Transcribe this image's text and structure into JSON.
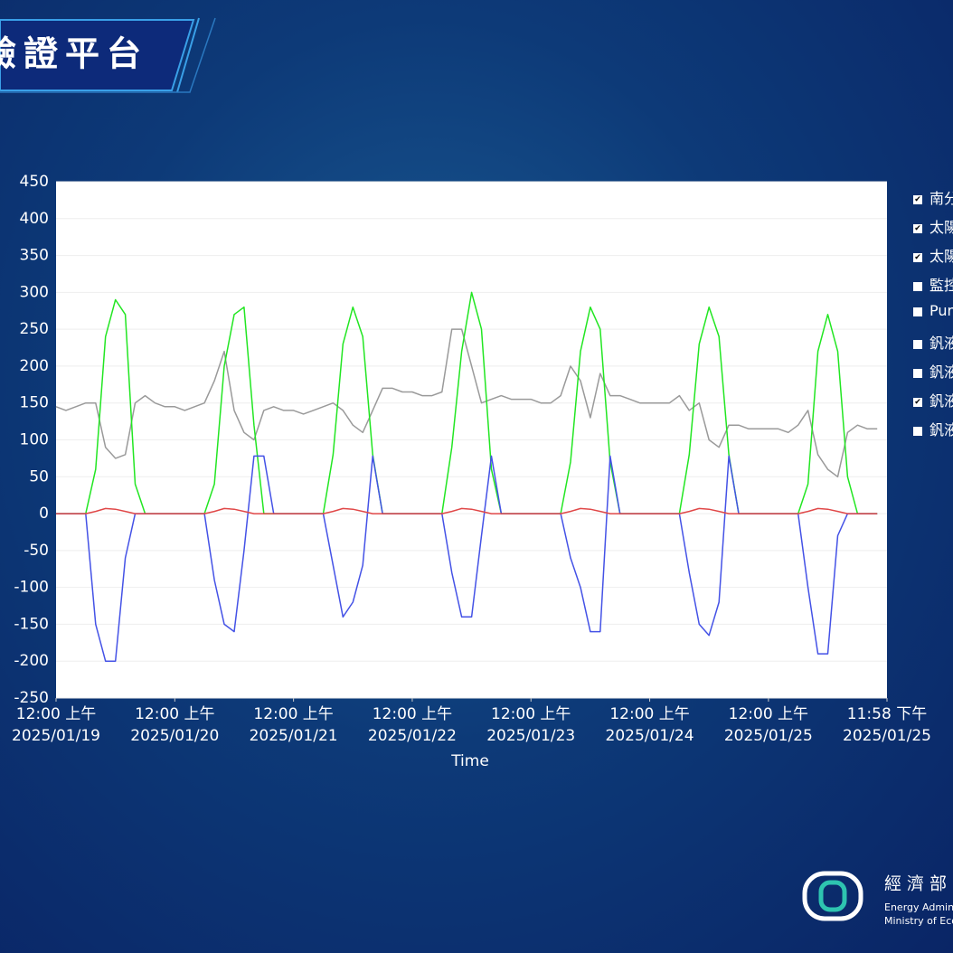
{
  "header": {
    "title": "驗證平台"
  },
  "footer": {
    "org": "經濟部",
    "en1": "Energy Admini",
    "en2": "Ministry of Eco"
  },
  "chart_data": {
    "type": "line",
    "xlabel": "Time",
    "xlim": [
      "2025-01-19T00:00",
      "2025-01-25T23:58"
    ],
    "xticks": [
      {
        "value": "2025-01-19T00:00",
        "label": "12:00 上午\n2025/01/19"
      },
      {
        "value": "2025-01-20T00:00",
        "label": "12:00 上午\n2025/01/20"
      },
      {
        "value": "2025-01-21T00:00",
        "label": "12:00 上午\n2025/01/21"
      },
      {
        "value": "2025-01-22T00:00",
        "label": "12:00 上午\n2025/01/22"
      },
      {
        "value": "2025-01-23T00:00",
        "label": "12:00 上午\n2025/01/23"
      },
      {
        "value": "2025-01-24T00:00",
        "label": "12:00 上午\n2025/01/24"
      },
      {
        "value": "2025-01-25T00:00",
        "label": "12:00 上午\n2025/01/25"
      },
      {
        "value": "2025-01-25T23:58",
        "label": "11:58 下午\n2025/01/25"
      }
    ],
    "ylim": [
      -250,
      450
    ],
    "yticks": [
      -250,
      -200,
      -150,
      -100,
      -50,
      0,
      50,
      100,
      150,
      200,
      250,
      300,
      350,
      400,
      450
    ],
    "grid": true,
    "x": [
      "2025-01-19T00:00",
      "2025-01-19T02:00",
      "2025-01-19T04:00",
      "2025-01-19T06:00",
      "2025-01-19T08:00",
      "2025-01-19T10:00",
      "2025-01-19T12:00",
      "2025-01-19T14:00",
      "2025-01-19T16:00",
      "2025-01-19T18:00",
      "2025-01-19T20:00",
      "2025-01-19T22:00",
      "2025-01-20T00:00",
      "2025-01-20T02:00",
      "2025-01-20T04:00",
      "2025-01-20T06:00",
      "2025-01-20T08:00",
      "2025-01-20T10:00",
      "2025-01-20T12:00",
      "2025-01-20T14:00",
      "2025-01-20T16:00",
      "2025-01-20T18:00",
      "2025-01-20T20:00",
      "2025-01-20T22:00",
      "2025-01-21T00:00",
      "2025-01-21T02:00",
      "2025-01-21T04:00",
      "2025-01-21T06:00",
      "2025-01-21T08:00",
      "2025-01-21T10:00",
      "2025-01-21T12:00",
      "2025-01-21T14:00",
      "2025-01-21T16:00",
      "2025-01-21T18:00",
      "2025-01-21T20:00",
      "2025-01-21T22:00",
      "2025-01-22T00:00",
      "2025-01-22T02:00",
      "2025-01-22T04:00",
      "2025-01-22T06:00",
      "2025-01-22T08:00",
      "2025-01-22T10:00",
      "2025-01-22T12:00",
      "2025-01-22T14:00",
      "2025-01-22T16:00",
      "2025-01-22T18:00",
      "2025-01-22T20:00",
      "2025-01-22T22:00",
      "2025-01-23T00:00",
      "2025-01-23T02:00",
      "2025-01-23T04:00",
      "2025-01-23T06:00",
      "2025-01-23T08:00",
      "2025-01-23T10:00",
      "2025-01-23T12:00",
      "2025-01-23T14:00",
      "2025-01-23T16:00",
      "2025-01-23T18:00",
      "2025-01-23T20:00",
      "2025-01-23T22:00",
      "2025-01-24T00:00",
      "2025-01-24T02:00",
      "2025-01-24T04:00",
      "2025-01-24T06:00",
      "2025-01-24T08:00",
      "2025-01-24T10:00",
      "2025-01-24T12:00",
      "2025-01-24T14:00",
      "2025-01-24T16:00",
      "2025-01-24T18:00",
      "2025-01-24T20:00",
      "2025-01-24T22:00",
      "2025-01-25T00:00",
      "2025-01-25T02:00",
      "2025-01-25T04:00",
      "2025-01-25T06:00",
      "2025-01-25T08:00",
      "2025-01-25T10:00",
      "2025-01-25T12:00",
      "2025-01-25T14:00",
      "2025-01-25T16:00",
      "2025-01-25T18:00",
      "2025-01-25T20:00",
      "2025-01-25T22:00"
    ],
    "series": [
      {
        "name": "南分",
        "checked": true,
        "color": "#9a9a9a",
        "values": [
          145,
          140,
          145,
          150,
          150,
          90,
          75,
          80,
          150,
          160,
          150,
          145,
          145,
          140,
          145,
          150,
          180,
          220,
          140,
          110,
          100,
          140,
          145,
          140,
          140,
          135,
          140,
          145,
          150,
          140,
          120,
          110,
          140,
          170,
          170,
          165,
          165,
          160,
          160,
          165,
          250,
          250,
          200,
          150,
          155,
          160,
          155,
          155,
          155,
          150,
          150,
          160,
          200,
          180,
          130,
          190,
          160,
          160,
          155,
          150,
          150,
          150,
          150,
          160,
          140,
          150,
          100,
          90,
          120,
          120,
          115,
          115,
          115,
          115,
          110,
          120,
          140,
          80,
          60,
          50,
          110,
          120,
          115,
          115
        ]
      },
      {
        "name": "太陽",
        "checked": true,
        "color": "#22e622",
        "values": [
          0,
          0,
          0,
          0,
          60,
          240,
          290,
          270,
          40,
          0,
          0,
          0,
          0,
          0,
          0,
          0,
          40,
          200,
          270,
          280,
          120,
          0,
          0,
          0,
          0,
          0,
          0,
          0,
          80,
          230,
          280,
          240,
          80,
          0,
          0,
          0,
          0,
          0,
          0,
          0,
          90,
          220,
          300,
          250,
          60,
          0,
          0,
          0,
          0,
          0,
          0,
          0,
          70,
          220,
          280,
          250,
          70,
          0,
          0,
          0,
          0,
          0,
          0,
          0,
          80,
          230,
          280,
          240,
          80,
          0,
          0,
          0,
          0,
          0,
          0,
          0,
          40,
          220,
          270,
          220,
          50,
          0,
          0,
          0
        ]
      },
      {
        "name": "太陽",
        "checked": true,
        "color": "#4452e6",
        "values": [
          0,
          0,
          0,
          0,
          -150,
          -200,
          -200,
          -60,
          0,
          0,
          0,
          0,
          0,
          0,
          0,
          0,
          -90,
          -150,
          -160,
          -50,
          78,
          78,
          0,
          0,
          0,
          0,
          0,
          0,
          -70,
          -140,
          -120,
          -70,
          78,
          0,
          0,
          0,
          0,
          0,
          0,
          0,
          -80,
          -140,
          -140,
          -30,
          78,
          0,
          0,
          0,
          0,
          0,
          0,
          0,
          -60,
          -100,
          -160,
          -160,
          78,
          0,
          0,
          0,
          0,
          0,
          0,
          0,
          -80,
          -150,
          -165,
          -120,
          78,
          0,
          0,
          0,
          0,
          0,
          0,
          0,
          -100,
          -190,
          -190,
          -30,
          0,
          0,
          0,
          0
        ]
      },
      {
        "name": "監控",
        "checked": false
      },
      {
        "name": "Pur",
        "checked": false
      },
      {
        "name": "釩液",
        "checked": false
      },
      {
        "name": "釩液",
        "checked": false
      },
      {
        "name": "釩液",
        "checked": true,
        "color": "#e04848",
        "values": [
          0,
          0,
          0,
          0,
          3,
          7,
          6,
          3,
          0,
          0,
          0,
          0,
          0,
          0,
          0,
          0,
          3,
          7,
          6,
          3,
          0,
          0,
          0,
          0,
          0,
          0,
          0,
          0,
          3,
          7,
          6,
          3,
          0,
          0,
          0,
          0,
          0,
          0,
          0,
          0,
          3,
          7,
          6,
          3,
          0,
          0,
          0,
          0,
          0,
          0,
          0,
          0,
          3,
          7,
          6,
          3,
          0,
          0,
          0,
          0,
          0,
          0,
          0,
          0,
          3,
          7,
          6,
          3,
          0,
          0,
          0,
          0,
          0,
          0,
          0,
          0,
          3,
          7,
          6,
          3,
          0,
          0,
          0,
          0
        ]
      },
      {
        "name": "釩液",
        "checked": false
      }
    ]
  }
}
